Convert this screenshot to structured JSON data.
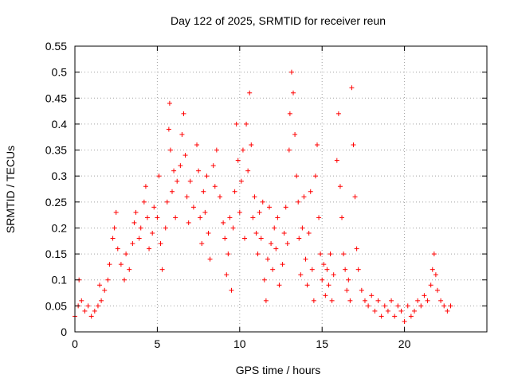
{
  "chart_data": {
    "type": "scatter",
    "title": "Day 122 of 2025, SRMTID for receiver reun",
    "xlabel": "GPS time / hours",
    "ylabel": "SRMTID / TECUs",
    "xlim": [
      0,
      25
    ],
    "ylim": [
      0,
      0.55
    ],
    "x_ticks": [
      0,
      5,
      10,
      15,
      20
    ],
    "x_tick_labels": [
      "0",
      "5",
      "10",
      "15",
      "20"
    ],
    "y_ticks": [
      0,
      0.05,
      0.1,
      0.15,
      0.2,
      0.25,
      0.3,
      0.35,
      0.4,
      0.45,
      0.5,
      0.55
    ],
    "y_tick_labels": [
      "0",
      "0.05",
      "0.1",
      "0.15",
      "0.2",
      "0.25",
      "0.3",
      "0.35",
      "0.4",
      "0.45",
      "0.5",
      "0.55"
    ],
    "grid": true,
    "marker": "+",
    "color": "#ff0000",
    "series": [
      {
        "name": "SRMTID",
        "points": [
          [
            0.0,
            0.03
          ],
          [
            0.2,
            0.05
          ],
          [
            0.25,
            0.1
          ],
          [
            0.4,
            0.06
          ],
          [
            0.6,
            0.04
          ],
          [
            0.8,
            0.05
          ],
          [
            1.0,
            0.03
          ],
          [
            1.2,
            0.04
          ],
          [
            1.4,
            0.05
          ],
          [
            1.5,
            0.09
          ],
          [
            1.6,
            0.06
          ],
          [
            1.8,
            0.08
          ],
          [
            2.0,
            0.1
          ],
          [
            2.1,
            0.13
          ],
          [
            2.3,
            0.18
          ],
          [
            2.4,
            0.2
          ],
          [
            2.5,
            0.23
          ],
          [
            2.6,
            0.16
          ],
          [
            2.8,
            0.13
          ],
          [
            3.0,
            0.1
          ],
          [
            3.1,
            0.15
          ],
          [
            3.3,
            0.12
          ],
          [
            3.5,
            0.17
          ],
          [
            3.6,
            0.21
          ],
          [
            3.7,
            0.23
          ],
          [
            3.9,
            0.18
          ],
          [
            4.0,
            0.2
          ],
          [
            4.2,
            0.25
          ],
          [
            4.3,
            0.28
          ],
          [
            4.4,
            0.22
          ],
          [
            4.5,
            0.16
          ],
          [
            4.7,
            0.19
          ],
          [
            4.8,
            0.24
          ],
          [
            5.0,
            0.22
          ],
          [
            5.1,
            0.3
          ],
          [
            5.2,
            0.17
          ],
          [
            5.3,
            0.12
          ],
          [
            5.5,
            0.2
          ],
          [
            5.6,
            0.25
          ],
          [
            5.7,
            0.39
          ],
          [
            5.75,
            0.44
          ],
          [
            5.8,
            0.35
          ],
          [
            5.9,
            0.27
          ],
          [
            6.0,
            0.31
          ],
          [
            6.1,
            0.22
          ],
          [
            6.2,
            0.29
          ],
          [
            6.4,
            0.32
          ],
          [
            6.5,
            0.38
          ],
          [
            6.6,
            0.42
          ],
          [
            6.7,
            0.34
          ],
          [
            6.8,
            0.26
          ],
          [
            6.9,
            0.21
          ],
          [
            7.0,
            0.29
          ],
          [
            7.2,
            0.24
          ],
          [
            7.4,
            0.36
          ],
          [
            7.5,
            0.31
          ],
          [
            7.6,
            0.22
          ],
          [
            7.7,
            0.17
          ],
          [
            7.8,
            0.27
          ],
          [
            7.9,
            0.23
          ],
          [
            8.0,
            0.3
          ],
          [
            8.1,
            0.19
          ],
          [
            8.2,
            0.14
          ],
          [
            8.4,
            0.32
          ],
          [
            8.5,
            0.28
          ],
          [
            8.6,
            0.35
          ],
          [
            8.8,
            0.26
          ],
          [
            9.0,
            0.21
          ],
          [
            9.1,
            0.18
          ],
          [
            9.2,
            0.11
          ],
          [
            9.3,
            0.15
          ],
          [
            9.4,
            0.22
          ],
          [
            9.5,
            0.08
          ],
          [
            9.6,
            0.2
          ],
          [
            9.7,
            0.27
          ],
          [
            9.8,
            0.4
          ],
          [
            9.9,
            0.33
          ],
          [
            10.0,
            0.23
          ],
          [
            10.1,
            0.29
          ],
          [
            10.2,
            0.35
          ],
          [
            10.3,
            0.18
          ],
          [
            10.4,
            0.4
          ],
          [
            10.5,
            0.31
          ],
          [
            10.6,
            0.46
          ],
          [
            10.7,
            0.36
          ],
          [
            10.8,
            0.22
          ],
          [
            10.9,
            0.26
          ],
          [
            11.0,
            0.19
          ],
          [
            11.1,
            0.15
          ],
          [
            11.2,
            0.23
          ],
          [
            11.3,
            0.18
          ],
          [
            11.4,
            0.25
          ],
          [
            11.5,
            0.1
          ],
          [
            11.6,
            0.06
          ],
          [
            11.7,
            0.14
          ],
          [
            11.8,
            0.24
          ],
          [
            11.9,
            0.17
          ],
          [
            12.0,
            0.12
          ],
          [
            12.1,
            0.2
          ],
          [
            12.2,
            0.16
          ],
          [
            12.3,
            0.22
          ],
          [
            12.4,
            0.09
          ],
          [
            12.6,
            0.13
          ],
          [
            12.7,
            0.19
          ],
          [
            12.8,
            0.24
          ],
          [
            12.9,
            0.17
          ],
          [
            13.0,
            0.35
          ],
          [
            13.05,
            0.42
          ],
          [
            13.15,
            0.5
          ],
          [
            13.25,
            0.46
          ],
          [
            13.35,
            0.38
          ],
          [
            13.45,
            0.3
          ],
          [
            13.55,
            0.25
          ],
          [
            13.6,
            0.18
          ],
          [
            13.7,
            0.11
          ],
          [
            13.8,
            0.2
          ],
          [
            13.9,
            0.26
          ],
          [
            14.0,
            0.14
          ],
          [
            14.1,
            0.09
          ],
          [
            14.2,
            0.19
          ],
          [
            14.3,
            0.27
          ],
          [
            14.4,
            0.12
          ],
          [
            14.5,
            0.06
          ],
          [
            14.6,
            0.3
          ],
          [
            14.7,
            0.36
          ],
          [
            14.8,
            0.22
          ],
          [
            14.9,
            0.15
          ],
          [
            15.0,
            0.1
          ],
          [
            15.1,
            0.13
          ],
          [
            15.2,
            0.07
          ],
          [
            15.3,
            0.12
          ],
          [
            15.4,
            0.09
          ],
          [
            15.5,
            0.15
          ],
          [
            15.6,
            0.06
          ],
          [
            15.7,
            0.11
          ],
          [
            15.9,
            0.33
          ],
          [
            16.0,
            0.42
          ],
          [
            16.1,
            0.28
          ],
          [
            16.2,
            0.22
          ],
          [
            16.3,
            0.15
          ],
          [
            16.4,
            0.12
          ],
          [
            16.5,
            0.08
          ],
          [
            16.6,
            0.1
          ],
          [
            16.7,
            0.06
          ],
          [
            16.8,
            0.47
          ],
          [
            16.9,
            0.36
          ],
          [
            17.0,
            0.26
          ],
          [
            17.1,
            0.16
          ],
          [
            17.2,
            0.12
          ],
          [
            17.4,
            0.08
          ],
          [
            17.6,
            0.06
          ],
          [
            17.8,
            0.05
          ],
          [
            18.0,
            0.07
          ],
          [
            18.2,
            0.04
          ],
          [
            18.4,
            0.06
          ],
          [
            18.6,
            0.03
          ],
          [
            18.8,
            0.05
          ],
          [
            19.0,
            0.04
          ],
          [
            19.2,
            0.06
          ],
          [
            19.4,
            0.03
          ],
          [
            19.6,
            0.05
          ],
          [
            19.8,
            0.04
          ],
          [
            20.0,
            0.02
          ],
          [
            20.2,
            0.05
          ],
          [
            20.4,
            0.03
          ],
          [
            20.6,
            0.04
          ],
          [
            20.8,
            0.06
          ],
          [
            21.0,
            0.05
          ],
          [
            21.2,
            0.07
          ],
          [
            21.4,
            0.06
          ],
          [
            21.6,
            0.09
          ],
          [
            21.7,
            0.12
          ],
          [
            21.8,
            0.15
          ],
          [
            21.9,
            0.11
          ],
          [
            22.0,
            0.08
          ],
          [
            22.2,
            0.06
          ],
          [
            22.4,
            0.05
          ],
          [
            22.6,
            0.04
          ],
          [
            22.8,
            0.05
          ]
        ]
      }
    ]
  }
}
